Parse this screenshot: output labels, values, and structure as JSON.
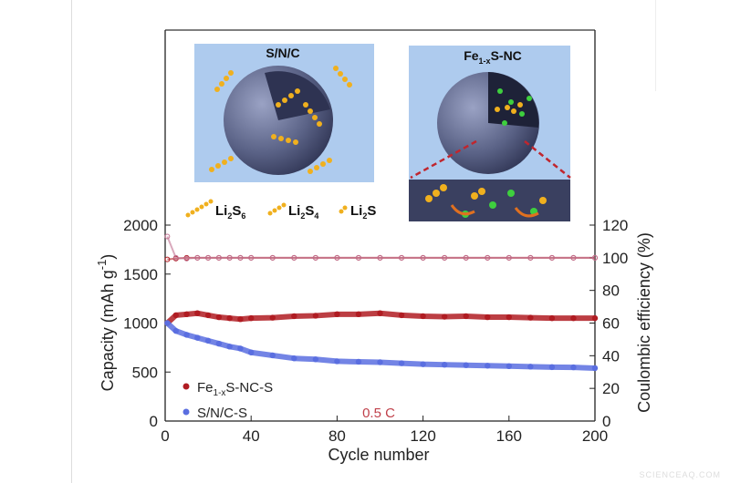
{
  "insets": {
    "left_title": "S/N/C",
    "right_title_main": "Fe",
    "right_title_sub": "1-x",
    "right_title_rest": "S-NC",
    "legend": [
      {
        "main": "Li",
        "sub1": "2",
        "mid": "S",
        "sub2": "6"
      },
      {
        "main": "Li",
        "sub1": "2",
        "mid": "S",
        "sub2": "4"
      },
      {
        "main": "Li",
        "sub1": "2",
        "mid": "S",
        "sub2": ""
      }
    ],
    "colors": {
      "panel_bg": "#a9c8ec",
      "sphere": "#5a6286",
      "polysulfide": "#f0b01e",
      "catalyst": "#3ecf3e",
      "arrow": "#e07020",
      "zoom_line": "#c0262e"
    }
  },
  "chart_data": {
    "type": "scatter",
    "xlabel": "Cycle number",
    "ylabel": "Capacity (mAh g",
    "ylabel_sup": "-1",
    "ylabel_close": ")",
    "y2label": "Coulombic efficiency (%)",
    "xlim": [
      0,
      200
    ],
    "ylim": [
      0,
      2000
    ],
    "y2lim": [
      0,
      120
    ],
    "xticks": [
      "0",
      "40",
      "80",
      "120",
      "160",
      "200"
    ],
    "yticks": [
      "0",
      "500",
      "1000",
      "1500",
      "2000"
    ],
    "y2ticks": [
      "0",
      "20",
      "40",
      "60",
      "80",
      "100",
      "120"
    ],
    "annotation": "0.5 C",
    "x": [
      1,
      5,
      10,
      15,
      20,
      25,
      30,
      35,
      40,
      50,
      60,
      70,
      80,
      90,
      100,
      110,
      120,
      130,
      140,
      150,
      160,
      170,
      180,
      190,
      200
    ],
    "series": [
      {
        "name": "Fe1-xS-NC-S",
        "name_main": "Fe",
        "name_sub": "1-x",
        "name_rest": "S-NC-S",
        "color": "#b01c22",
        "axis": "capacity",
        "values": [
          1000,
          1080,
          1090,
          1100,
          1080,
          1060,
          1050,
          1040,
          1050,
          1055,
          1070,
          1075,
          1090,
          1090,
          1100,
          1080,
          1070,
          1065,
          1070,
          1060,
          1060,
          1055,
          1050,
          1050,
          1050
        ]
      },
      {
        "name": "S/N/C-S",
        "color": "#5a6ee0",
        "axis": "capacity",
        "values": [
          1000,
          920,
          880,
          850,
          820,
          790,
          760,
          740,
          700,
          670,
          640,
          630,
          610,
          605,
          600,
          590,
          580,
          575,
          570,
          565,
          560,
          555,
          550,
          548,
          540
        ]
      },
      {
        "color": "#b01c22",
        "axis": "efficiency",
        "marker": "open",
        "values": [
          99,
          99.5,
          100,
          100,
          100,
          100,
          100,
          100,
          100,
          100,
          100,
          100,
          100,
          100,
          100,
          100,
          100,
          100,
          100,
          100,
          100,
          100,
          100,
          100,
          100
        ]
      },
      {
        "color": "#c07090",
        "axis": "efficiency",
        "marker": "open",
        "values": [
          113,
          100,
          99.5,
          100,
          100,
          100,
          100,
          100,
          100,
          100,
          100,
          100,
          100,
          100,
          100,
          100,
          100,
          100,
          100,
          100,
          100,
          100,
          100,
          100,
          100
        ]
      }
    ]
  },
  "watermark": "SCIENCEAQ.COM"
}
